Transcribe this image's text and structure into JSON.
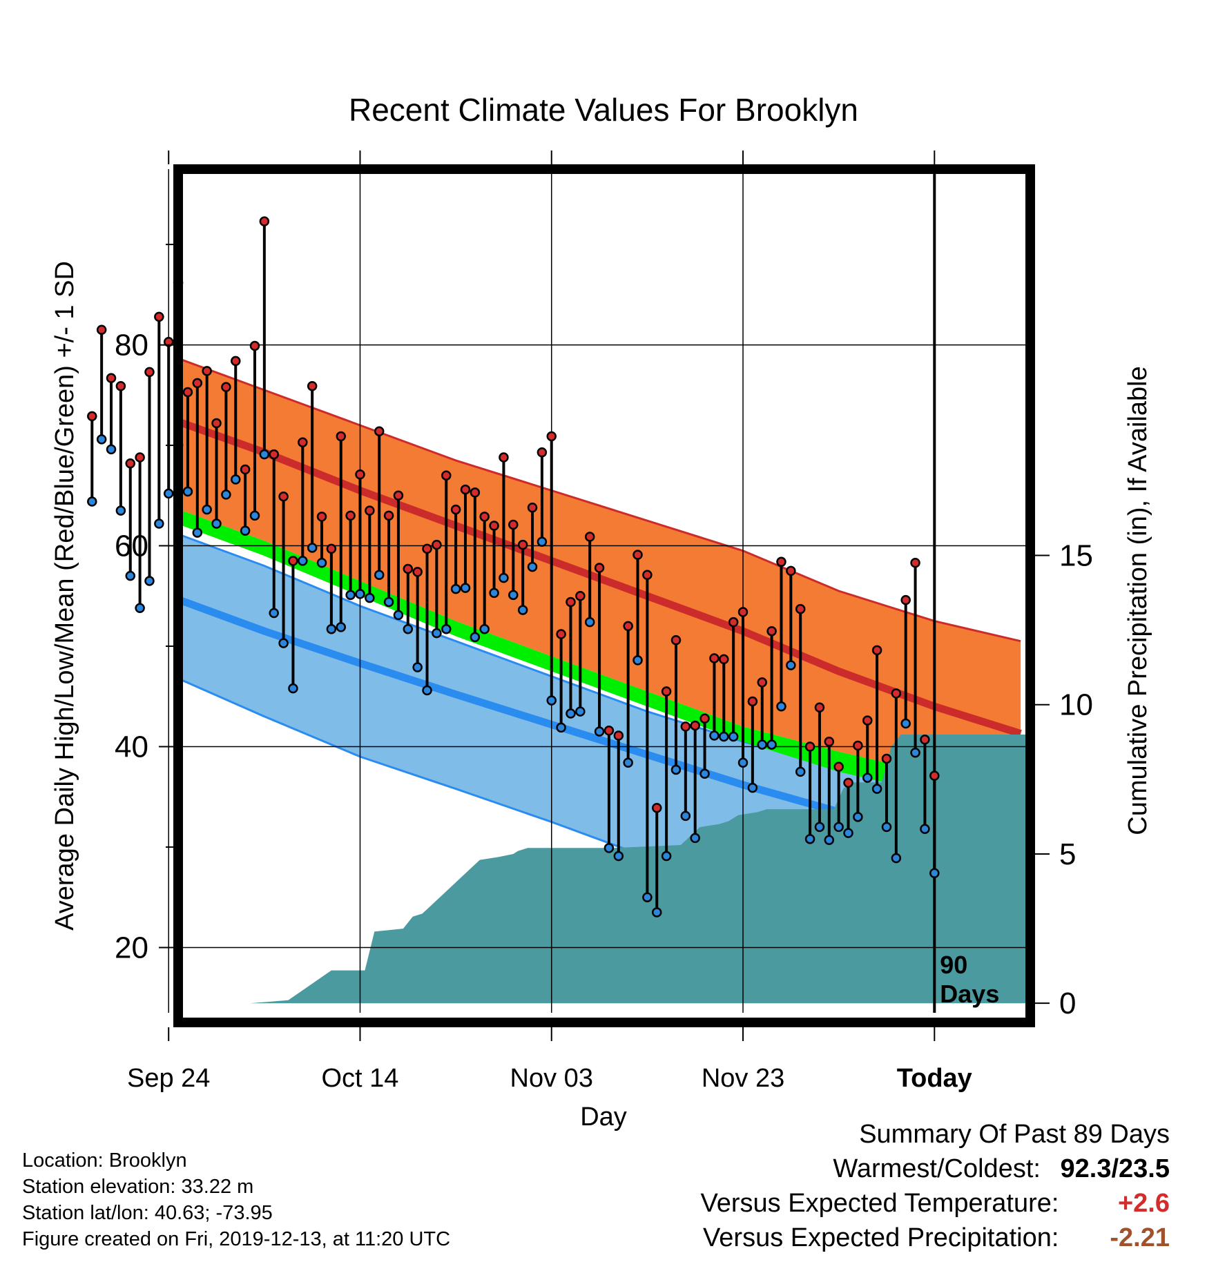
{
  "chart_data": {
    "type": "line",
    "title": "Recent Climate Values For Brooklyn",
    "xlabel": "Day",
    "ylabel": "Average Daily High/Low/Mean (Red/Blue/Green) +/- 1 SD",
    "y2label": "Cumulative Precipitation (in), If Available",
    "ylim": [
      13.5,
      97.5
    ],
    "y2lim": [
      -0.32,
      27.94
    ],
    "xlim": [
      -78.5,
      9.5
    ],
    "x_ticks": [
      {
        "x": -80,
        "label": "Sep 24"
      },
      {
        "x": -60,
        "label": "Oct 14"
      },
      {
        "x": -40,
        "label": "Nov 03"
      },
      {
        "x": -20,
        "label": "Nov 23"
      },
      {
        "x": 0,
        "label": "Today"
      }
    ],
    "y_ticks": [
      20,
      40,
      60,
      80
    ],
    "y2_ticks": [
      0,
      5,
      10,
      15
    ],
    "grid": true,
    "today_label": "90\nDays",
    "normals": {
      "x": [
        -90,
        -80,
        -70,
        -60,
        -50,
        -40,
        -30,
        -20,
        -10,
        0,
        9
      ],
      "high_upper": [
        82.2,
        79.0,
        75.5,
        72.0,
        68.5,
        65.5,
        62.5,
        59.5,
        55.5,
        52.5,
        50.5
      ],
      "high_mean": [
        76.0,
        72.7,
        69.3,
        65.5,
        62.0,
        58.5,
        55.0,
        51.5,
        47.5,
        44.0,
        41.3
      ],
      "mean_upper": [
        67.5,
        64.0,
        60.5,
        56.5,
        52.5,
        49.0,
        45.5,
        42.0,
        39.5,
        37.3,
        35.0
      ],
      "mean_lower": [
        66.0,
        62.5,
        59.0,
        55.0,
        51.0,
        47.5,
        44.0,
        40.5,
        37.5,
        35.3,
        33.5
      ],
      "low_upper": [
        64.5,
        61.5,
        58.0,
        54.0,
        50.5,
        47.0,
        43.5,
        40.5,
        38.0,
        36.0,
        35.5
      ],
      "low_mean": [
        58.2,
        55.0,
        51.5,
        48.3,
        45.2,
        42.2,
        39.2,
        36.2,
        33.5,
        30.5,
        28.2
      ],
      "low_lower": [
        51.3,
        47.2,
        43.0,
        39.0,
        35.8,
        32.5,
        29.0,
        25.5,
        22.0,
        19.0,
        16.5
      ]
    },
    "series": [
      {
        "name": "High",
        "values": [
          72.9,
          81.5,
          76.7,
          75.9,
          68.2,
          68.8,
          77.3,
          82.8,
          80.3,
          86.2,
          75.3,
          76.2,
          77.4,
          72.2,
          75.8,
          78.4,
          67.6,
          79.9,
          92.3,
          69.1,
          64.9,
          58.5,
          70.3,
          75.9,
          62.9,
          59.7,
          70.9,
          63.0,
          67.1,
          63.5,
          71.4,
          63.0,
          65.0,
          57.7,
          57.4,
          59.7,
          60.1,
          67.0,
          63.6,
          65.6,
          65.3,
          62.9,
          62.0,
          68.8,
          62.1,
          60.1,
          63.8,
          69.3,
          70.9,
          51.2,
          54.4,
          55.0,
          60.9,
          57.8,
          41.6,
          41.1,
          52.0,
          59.1,
          57.1,
          33.9,
          45.5,
          50.6,
          42.0,
          42.1,
          42.8,
          48.8,
          48.7,
          52.4,
          53.4,
          44.5,
          46.4,
          51.5,
          58.4,
          57.5,
          53.7,
          40.0,
          43.9,
          40.5,
          38.0,
          36.4,
          40.1,
          42.6,
          49.6,
          38.8,
          45.3,
          54.6,
          58.3,
          40.7,
          37.1
        ]
      },
      {
        "name": "Low",
        "values": [
          64.4,
          70.6,
          69.6,
          63.5,
          57.0,
          53.8,
          56.5,
          62.2,
          65.2,
          70.0,
          65.4,
          61.3,
          63.6,
          62.2,
          65.1,
          66.6,
          61.5,
          63.0,
          69.1,
          53.3,
          50.3,
          45.8,
          58.5,
          59.8,
          58.3,
          51.7,
          51.9,
          55.1,
          55.2,
          54.8,
          57.1,
          54.4,
          53.1,
          51.7,
          47.9,
          45.6,
          51.3,
          51.7,
          55.7,
          55.8,
          50.9,
          51.7,
          55.3,
          56.8,
          55.1,
          53.6,
          57.9,
          60.4,
          44.6,
          41.9,
          43.3,
          43.5,
          52.4,
          41.5,
          29.9,
          29.1,
          38.4,
          48.6,
          25.0,
          23.5,
          29.1,
          37.7,
          33.1,
          30.9,
          37.3,
          41.1,
          41.0,
          41.0,
          38.4,
          35.9,
          40.2,
          40.2,
          44.0,
          48.1,
          37.5,
          30.8,
          32.0,
          30.7,
          32.0,
          31.4,
          33.0,
          36.9,
          35.8,
          32.0,
          28.9,
          42.3,
          39.4,
          31.8,
          27.4
        ]
      }
    ],
    "precip": {
      "x": [
        -90,
        -71.5,
        -67.5,
        -63,
        -59.5,
        -58.5,
        -55.5,
        -54.5,
        -53.5,
        -52.5,
        -48.5,
        -47.5,
        -45.5,
        -44,
        -43.5,
        -42.5,
        -41.5,
        -40.5,
        -33.5,
        -26.5,
        -24.5,
        -22.5,
        -21.5,
        -20.5,
        -18.5,
        -17.5,
        -10.5,
        -9.5,
        -8.5,
        -5.5,
        -4.5,
        -3.5,
        9.5
      ],
      "values": [
        0,
        0,
        0.1,
        1.1,
        1.1,
        2.4,
        2.5,
        2.9,
        3.0,
        3.3,
        4.5,
        4.8,
        4.9,
        5.0,
        5.1,
        5.2,
        5.2,
        5.2,
        5.2,
        5.3,
        5.9,
        6.0,
        6.1,
        6.3,
        6.4,
        6.5,
        6.5,
        7.2,
        7.4,
        7.4,
        8.6,
        9.0,
        9.0
      ]
    }
  },
  "meta": {
    "location": "Location: Brooklyn",
    "elevation": "Station elevation: 33.22 m",
    "latlon": "Station lat/lon: 40.63; -73.95",
    "created": "Figure created on Fri, 2019-12-13, at 11:20 UTC"
  },
  "summary": {
    "heading": "Summary Of Past 89 Days",
    "warmest_label": "Warmest/Coldest:",
    "warmest_value": "92.3/23.5",
    "temp_label": "Versus Expected Temperature:",
    "temp_value": "+2.6",
    "precip_label": "Versus Expected Precipitation:",
    "precip_value": "-2.21"
  },
  "colors": {
    "high_band": "#f47b33",
    "high_line": "#cc2b2b",
    "mean_line": "#00ee00",
    "low_band": "#7fbde8",
    "low_line": "#2b8cf0",
    "precip": "#4a9aa0",
    "high_dot": "#d42c2c",
    "low_dot": "#2b86dc",
    "temp_value": "#d42c2c",
    "precip_value": "#a0522d"
  }
}
